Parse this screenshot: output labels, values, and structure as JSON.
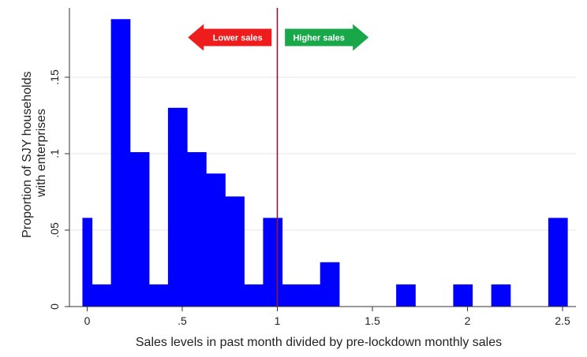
{
  "chart_data": {
    "type": "bar",
    "title": "",
    "xlabel": "Sales levels in past month divided by pre-lockdown monthly sales",
    "ylabel_lines": [
      "Proportion of SJY households",
      "with enterprises"
    ],
    "xlim": [
      -0.05,
      2.55
    ],
    "ylim": [
      0,
      0.2
    ],
    "x_ticks": [
      0,
      0.5,
      1,
      1.5,
      2,
      2.5
    ],
    "x_tick_labels": [
      "0",
      ".5",
      "1",
      "1.5",
      "2",
      "2.5"
    ],
    "y_ticks": [
      0,
      0.05,
      0.1,
      0.15
    ],
    "y_tick_labels": [
      "0",
      ".05",
      ".1",
      ".15"
    ],
    "grid": true,
    "bin_width": 0.05,
    "bar_color": "#0000ff",
    "bars": [
      {
        "x": 0.0,
        "value": 0.058
      },
      {
        "x": 0.05,
        "value": 0.0145
      },
      {
        "x": 0.1,
        "value": 0.0145
      },
      {
        "x": 0.15,
        "value": 0.188
      },
      {
        "x": 0.2,
        "value": 0.188
      },
      {
        "x": 0.25,
        "value": 0.101
      },
      {
        "x": 0.3,
        "value": 0.101
      },
      {
        "x": 0.35,
        "value": 0.0145
      },
      {
        "x": 0.4,
        "value": 0.0145
      },
      {
        "x": 0.45,
        "value": 0.13
      },
      {
        "x": 0.5,
        "value": 0.13
      },
      {
        "x": 0.55,
        "value": 0.101
      },
      {
        "x": 0.6,
        "value": 0.101
      },
      {
        "x": 0.65,
        "value": 0.087
      },
      {
        "x": 0.7,
        "value": 0.087
      },
      {
        "x": 0.75,
        "value": 0.072
      },
      {
        "x": 0.8,
        "value": 0.072
      },
      {
        "x": 0.85,
        "value": 0.0145
      },
      {
        "x": 0.9,
        "value": 0.0145
      },
      {
        "x": 0.95,
        "value": 0.058
      },
      {
        "x": 1.0,
        "value": 0.058
      },
      {
        "x": 1.05,
        "value": 0.0145
      },
      {
        "x": 1.1,
        "value": 0.0145
      },
      {
        "x": 1.15,
        "value": 0.0145
      },
      {
        "x": 1.2,
        "value": 0.0145
      },
      {
        "x": 1.25,
        "value": 0.029
      },
      {
        "x": 1.3,
        "value": 0.029
      },
      {
        "x": 1.65,
        "value": 0.0145
      },
      {
        "x": 1.7,
        "value": 0.0145
      },
      {
        "x": 1.95,
        "value": 0.0145
      },
      {
        "x": 2.0,
        "value": 0.0145
      },
      {
        "x": 2.15,
        "value": 0.0145
      },
      {
        "x": 2.2,
        "value": 0.0145
      },
      {
        "x": 2.45,
        "value": 0.058
      },
      {
        "x": 2.5,
        "value": 0.058
      }
    ],
    "reference_line": {
      "x": 1,
      "color": "#8b1a3a"
    },
    "annotations": [
      {
        "text": "Lower sales",
        "direction": "left",
        "color": "#ee1c1c",
        "x_start": 0.97,
        "x_end": 0.53,
        "y": 0.176
      },
      {
        "text": "Higher sales",
        "direction": "right",
        "color": "#18a84a",
        "x_start": 1.04,
        "x_end": 1.48,
        "y": 0.176
      }
    ]
  }
}
